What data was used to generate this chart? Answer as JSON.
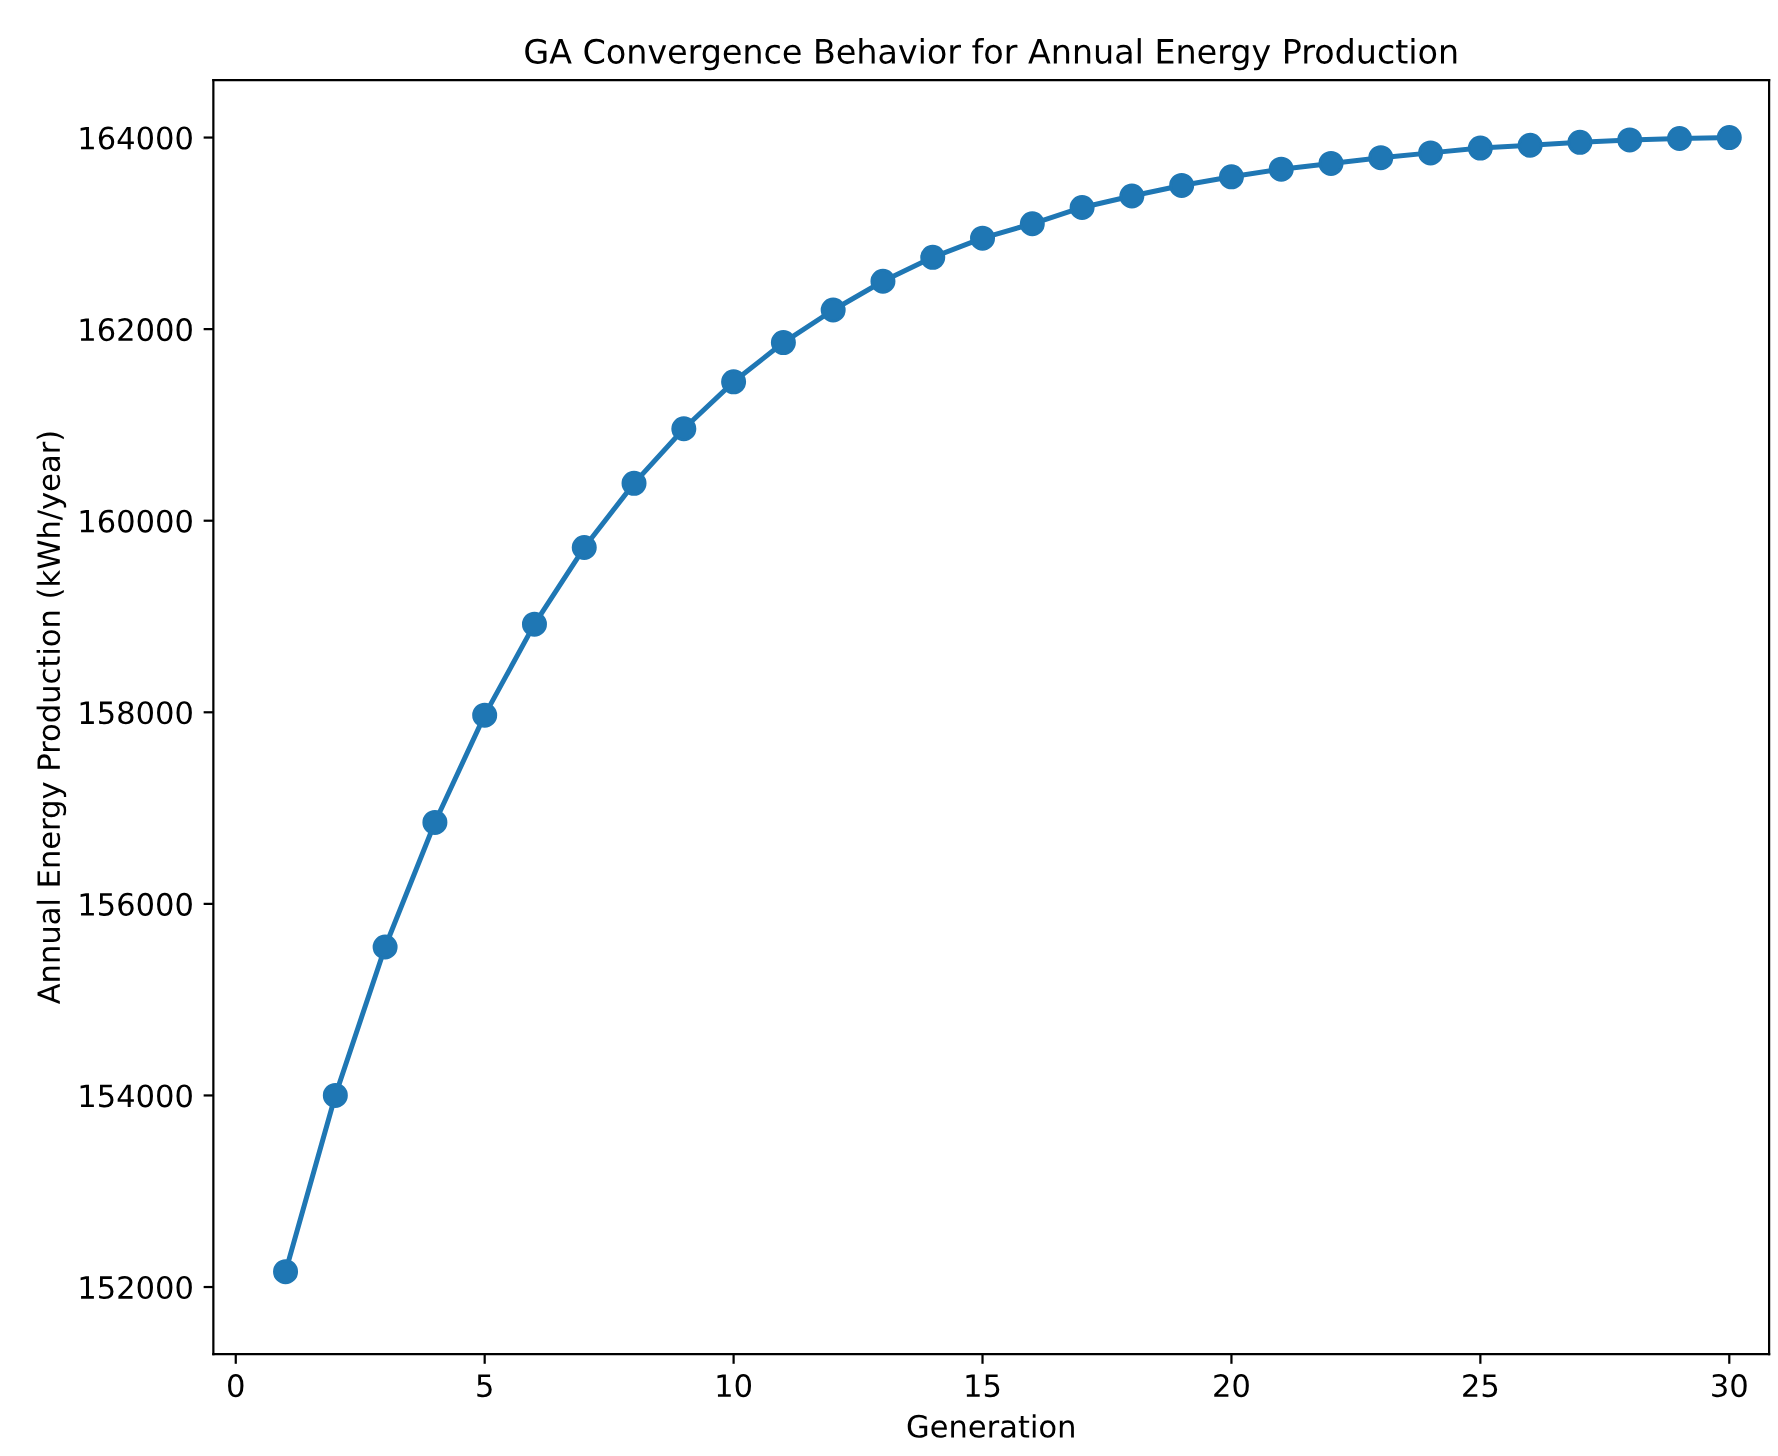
{
  "chart_data": {
    "type": "line",
    "title": "GA Convergence Behavior for Annual Energy Production",
    "xlabel": "Generation",
    "ylabel": "Annual Energy Production (kWh/year)",
    "x": [
      1,
      2,
      3,
      4,
      5,
      6,
      7,
      8,
      9,
      10,
      11,
      12,
      13,
      14,
      15,
      16,
      17,
      18,
      19,
      20,
      21,
      22,
      23,
      24,
      25,
      26,
      27,
      28,
      29,
      30
    ],
    "series": [
      {
        "color": "#1f77b4",
        "values": [
          152160,
          154000,
          155550,
          156850,
          157970,
          158920,
          159720,
          160390,
          160960,
          161450,
          161860,
          162200,
          162500,
          162750,
          162950,
          163100,
          163270,
          163390,
          163500,
          163590,
          163670,
          163730,
          163790,
          163840,
          163890,
          163920,
          163950,
          163975,
          163990,
          164000
        ]
      }
    ],
    "marker": "circle",
    "line_style": "solid",
    "grid": false,
    "legend": false,
    "xlim": [
      -0.45,
      30.8
    ],
    "ylim": [
      151300,
      164600
    ],
    "xticks": [
      0,
      5,
      10,
      15,
      20,
      25,
      30
    ],
    "yticks": [
      152000,
      154000,
      156000,
      158000,
      160000,
      162000,
      164000
    ]
  }
}
